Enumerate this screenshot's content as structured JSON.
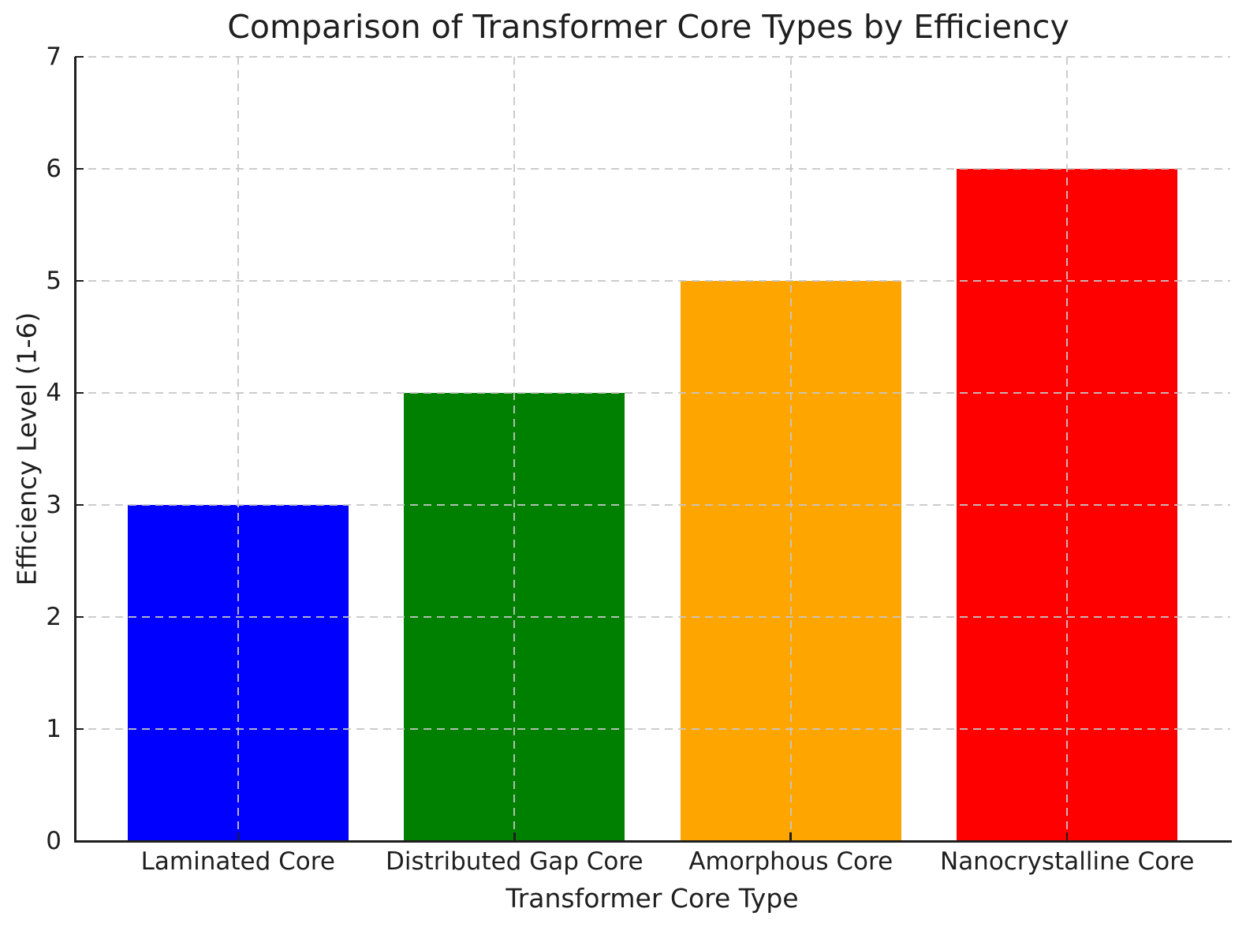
{
  "chart_data": {
    "type": "bar",
    "title": "Comparison of Transformer Core Types by Efficiency",
    "xlabel": "Transformer Core Type",
    "ylabel": "Efficiency Level (1-6)",
    "categories": [
      "Laminated Core",
      "Distributed Gap Core",
      "Amorphous Core",
      "Nanocrystalline Core"
    ],
    "values": [
      3,
      4,
      5,
      6
    ],
    "bar_colors": [
      "#0000ff",
      "#008000",
      "#ffa500",
      "#ff0000"
    ],
    "ylim": [
      0,
      7
    ],
    "yticks": [
      0,
      1,
      2,
      3,
      4,
      5,
      6,
      7
    ],
    "grid": "dashed",
    "grid_color": "#c6c6c6",
    "legend": "none",
    "axis_color": "#1f1f1f",
    "background_color": "#ffffff"
  }
}
